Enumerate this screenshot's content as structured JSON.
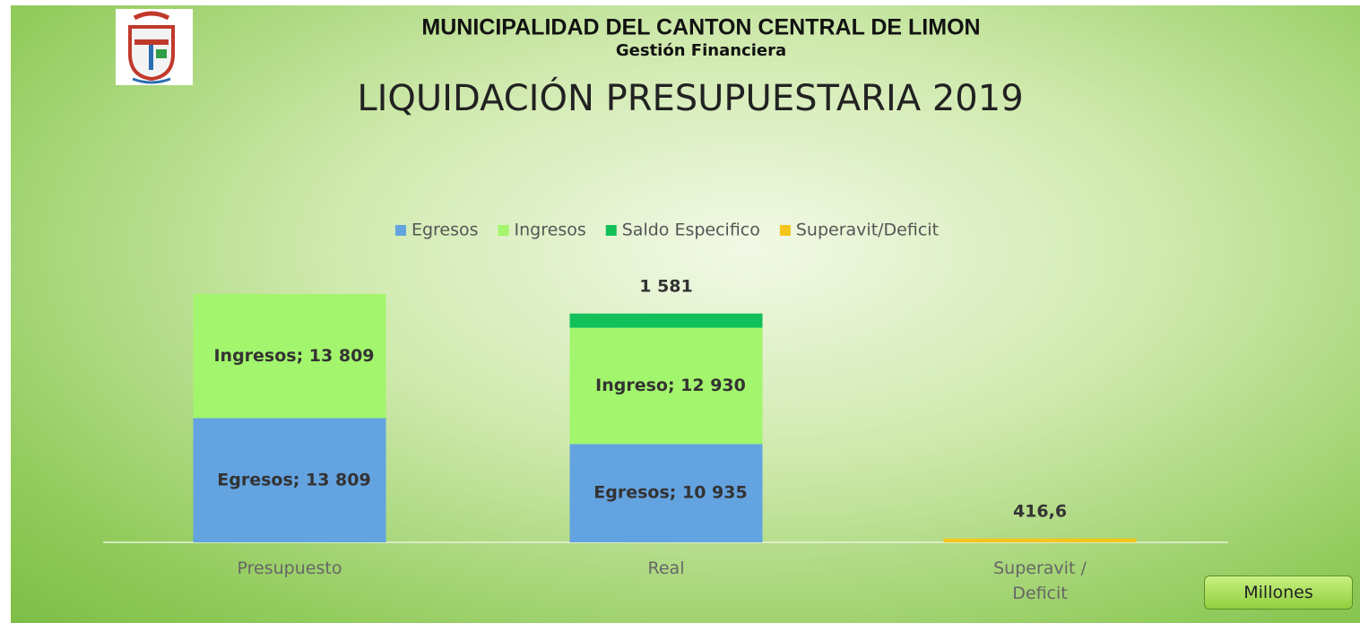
{
  "header": {
    "title": "MUNICIPALIDAD DEL CANTON CENTRAL DE LIMON",
    "subtitle": "Gestión Financiera"
  },
  "unit_button": "Millones",
  "chart_data": {
    "type": "bar",
    "stacked": true,
    "title": "LIQUIDACIÓN PRESUPUESTARIA 2019",
    "categories": [
      "Presupuesto",
      "Real",
      "Superavit / Deficit"
    ],
    "legend": "top",
    "series": [
      {
        "name": "Egresos",
        "color": "#63a3e0",
        "values": [
          13809,
          10935,
          null
        ],
        "value_labels": [
          "Egresos; 13 809",
          "Egresos; 10 935",
          null
        ]
      },
      {
        "name": "Ingresos",
        "color": "#a2f56c",
        "values": [
          13809,
          12930,
          null
        ],
        "value_labels": [
          "Ingresos; 13 809",
          "Ingreso; 12 930",
          null
        ]
      },
      {
        "name": "Saldo Especifico",
        "color": "#12c05a",
        "values": [
          null,
          1581,
          null
        ],
        "value_labels": [
          null,
          "1 581",
          null
        ]
      },
      {
        "name": "Superavit/Deficit",
        "color": "#f5c51a",
        "values": [
          null,
          null,
          416.6
        ],
        "value_labels": [
          null,
          null,
          "416,6"
        ]
      }
    ]
  }
}
